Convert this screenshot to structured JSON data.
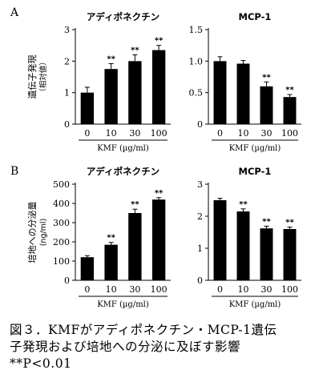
{
  "panels": [
    {
      "id": "A"
    },
    {
      "id": "B"
    }
  ],
  "chart_data": [
    {
      "type": "bar",
      "panel": "A",
      "title": "アディポネクチン",
      "ylabel": "遺伝子発現\n（相対値）",
      "xlabel": "KMF (µg/ml)",
      "categories": [
        "0",
        "10",
        "30",
        "100"
      ],
      "values": [
        1.0,
        1.75,
        2.0,
        2.35
      ],
      "errors": [
        0.17,
        0.17,
        0.2,
        0.15
      ],
      "significance": [
        "",
        "**",
        "**",
        "**"
      ],
      "ylim": [
        0,
        3
      ],
      "yticks": [
        0,
        1,
        2,
        3
      ],
      "ytick_labels": [
        "0",
        "1",
        "2",
        "3"
      ]
    },
    {
      "type": "bar",
      "panel": "A",
      "title": "MCP-1",
      "ylabel": "",
      "xlabel": "KMF (µg/ml)",
      "categories": [
        "0",
        "10",
        "30",
        "100"
      ],
      "values": [
        1.0,
        0.96,
        0.6,
        0.43
      ],
      "errors": [
        0.07,
        0.05,
        0.07,
        0.04
      ],
      "significance": [
        "",
        "",
        "**",
        "**"
      ],
      "ylim": [
        0,
        1.5
      ],
      "yticks": [
        0,
        0.5,
        1.0,
        1.5
      ],
      "ytick_labels": [
        "0",
        "0.5",
        "1.0",
        "1.5"
      ]
    },
    {
      "type": "bar",
      "panel": "B",
      "title": "アディポネクチン",
      "ylabel": "培地への分泌量\n(ng/ml)",
      "xlabel": "KMF (µg/ml)",
      "categories": [
        "0",
        "10",
        "30",
        "100"
      ],
      "values": [
        120,
        185,
        350,
        420
      ],
      "errors": [
        8,
        12,
        20,
        10
      ],
      "significance": [
        "",
        "**",
        "**",
        "**"
      ],
      "ylim": [
        0,
        500
      ],
      "yticks": [
        0,
        100,
        200,
        300,
        400,
        500
      ],
      "ytick_labels": [
        "0",
        "100",
        "200",
        "300",
        "400",
        "500"
      ]
    },
    {
      "type": "bar",
      "panel": "B",
      "title": "MCP-1",
      "ylabel": "",
      "xlabel": "KMF (µg/ml)",
      "categories": [
        "0",
        "10",
        "30",
        "100"
      ],
      "values": [
        2.5,
        2.15,
        1.62,
        1.6
      ],
      "errors": [
        0.06,
        0.08,
        0.07,
        0.06
      ],
      "significance": [
        "",
        "**",
        "**",
        "**"
      ],
      "ylim": [
        0,
        3
      ],
      "yticks": [
        0,
        1,
        2,
        3
      ],
      "ytick_labels": [
        "0",
        "1",
        "2",
        "3"
      ]
    }
  ],
  "caption": {
    "line1": "図３．KMFがアディポネクチン・MCP-1遺伝",
    "line2": "子発現および培地への分泌に及ぼす影響",
    "line3": "**P<0.01"
  },
  "colors": {
    "bar": "#000000",
    "axis": "#000000",
    "background": "#ffffff"
  }
}
